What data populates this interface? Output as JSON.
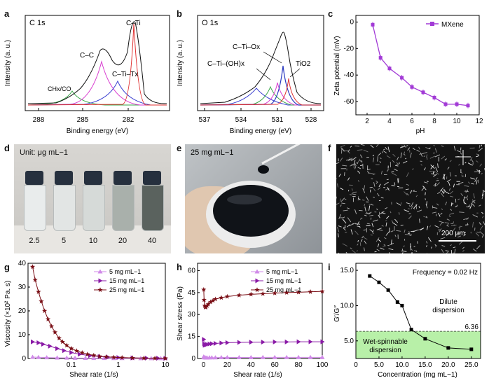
{
  "panel_labels": {
    "a": "a",
    "b": "b",
    "c": "c",
    "d": "d",
    "e": "e",
    "f": "f",
    "g": "g",
    "h": "h",
    "i": "i"
  },
  "a": {
    "title": "C 1s",
    "xlabel": "Binding energy (eV)",
    "ylabel": "Intensity (a. u.)",
    "xticks": [
      "288",
      "285",
      "282"
    ],
    "peaks": [
      "C–Ti",
      "C–C",
      "C–Ti–Tx",
      "CHx/CO"
    ]
  },
  "b": {
    "title": "O 1s",
    "xlabel": "Binding energy (eV)",
    "ylabel": "Intensity (a. u.)",
    "xticks": [
      "537",
      "534",
      "531",
      "528"
    ],
    "peaks": [
      "C–Ti–Ox",
      "C–Ti–(OH)x",
      "TiO2"
    ]
  },
  "c": {
    "legend": "MXene",
    "color": "#a23ad6",
    "chart_data": {
      "type": "line",
      "xlabel": "pH",
      "ylabel": "Zeta potential (mV)",
      "xlim": [
        1,
        12
      ],
      "ylim": [
        -70,
        5
      ],
      "xticks": [
        "2",
        "4",
        "6",
        "8",
        "10",
        "12"
      ],
      "yticks": [
        "0",
        "-20",
        "-40",
        "-60"
      ],
      "series": [
        {
          "name": "MXene",
          "x": [
            2.5,
            3.2,
            4.0,
            5.1,
            6.0,
            7.0,
            8.0,
            9.0,
            10.0,
            11.0
          ],
          "y": [
            -2,
            -27,
            -35,
            -42,
            -49,
            -53,
            -57,
            -62,
            -62,
            -63
          ]
        }
      ]
    }
  },
  "d": {
    "unit": "Unit: μg mL−1",
    "vials": [
      "2.5",
      "5",
      "10",
      "20",
      "40"
    ]
  },
  "e": {
    "caption": "25 mg mL−1"
  },
  "f": {
    "scalebar": "200 μm"
  },
  "g": {
    "chart_data": {
      "type": "line",
      "xlabel": "Shear rate (1/s)",
      "ylabel": "Viscosity (×10² Pa. s)",
      "xscale": "log",
      "ylim": [
        0,
        40
      ],
      "xticks": [
        "0.1",
        "1",
        "10"
      ],
      "yticks": [
        "0",
        "10",
        "20",
        "30",
        "40"
      ],
      "series": [
        {
          "name": "5 mg mL−1",
          "color": "#d08ae8",
          "marker": "triangle-up",
          "x": [
            0.015,
            0.02,
            0.03,
            0.05,
            0.08,
            0.12,
            0.2,
            0.3,
            0.5,
            0.8,
            1.2,
            2,
            3,
            5,
            8,
            10
          ],
          "y": [
            0.6,
            0.5,
            0.4,
            0.3,
            0.25,
            0.2,
            0.15,
            0.12,
            0.1,
            0.08,
            0.07,
            0.06,
            0.05,
            0.05,
            0.04,
            0.04
          ]
        },
        {
          "name": "15 mg mL−1",
          "color": "#8a1aa6",
          "marker": "triangle-right",
          "x": [
            0.015,
            0.02,
            0.025,
            0.035,
            0.05,
            0.07,
            0.1,
            0.15,
            0.25,
            0.4,
            0.6,
            1,
            2,
            4,
            7,
            10
          ],
          "y": [
            7,
            6.6,
            6,
            5.2,
            4.2,
            3.3,
            2.5,
            1.8,
            1.2,
            0.8,
            0.6,
            0.4,
            0.25,
            0.15,
            0.1,
            0.08
          ]
        },
        {
          "name": "25 mg mL−1",
          "color": "#7a0f16",
          "marker": "star",
          "x": [
            0.015,
            0.017,
            0.02,
            0.023,
            0.027,
            0.032,
            0.038,
            0.045,
            0.055,
            0.065,
            0.08,
            0.1,
            0.13,
            0.17,
            0.22,
            0.3,
            0.4,
            0.55,
            0.8,
            1.2,
            2,
            3.5,
            6,
            10
          ],
          "y": [
            38.5,
            33,
            28,
            24,
            20,
            16.5,
            13.5,
            11,
            8.5,
            7,
            5.5,
            4.2,
            3.2,
            2.4,
            1.8,
            1.3,
            0.9,
            0.7,
            0.5,
            0.35,
            0.25,
            0.15,
            0.1,
            0.08
          ]
        }
      ]
    }
  },
  "h": {
    "chart_data": {
      "type": "line",
      "xlabel": "Shear rate (1/s)",
      "ylabel": "Shear stress (Pa)",
      "xlim": [
        -5,
        100
      ],
      "ylim": [
        0,
        65
      ],
      "xticks": [
        "0",
        "20",
        "40",
        "60",
        "80",
        "100"
      ],
      "yticks": [
        "0",
        "15",
        "30",
        "45",
        "60"
      ],
      "series": [
        {
          "name": "5 mg mL−1",
          "color": "#d08ae8",
          "marker": "triangle-up",
          "x": [
            0.2,
            0.5,
            1,
            2,
            3,
            5,
            7,
            10,
            15,
            20,
            30,
            40,
            50,
            60,
            70,
            80,
            90,
            100
          ],
          "y": [
            1.2,
            0.8,
            0.6,
            0.5,
            0.5,
            0.6,
            0.6,
            0.6,
            0.7,
            0.7,
            0.7,
            0.7,
            0.8,
            0.8,
            0.8,
            0.8,
            0.8,
            0.8
          ]
        },
        {
          "name": "15 mg mL−1",
          "color": "#8a1aa6",
          "marker": "triangle-right",
          "x": [
            0.2,
            0.5,
            1,
            2,
            3,
            5,
            7,
            10,
            15,
            20,
            30,
            40,
            50,
            60,
            70,
            80,
            90,
            100
          ],
          "y": [
            13,
            10,
            9,
            9.3,
            9.6,
            9.9,
            10.1,
            10.3,
            10.6,
            10.8,
            11,
            11.1,
            11.2,
            11.3,
            11.3,
            11.4,
            11.4,
            11.4
          ]
        },
        {
          "name": "25 mg mL−1",
          "color": "#7a0f16",
          "marker": "star",
          "x": [
            0.2,
            0.5,
            1,
            1.5,
            2,
            3,
            4,
            6,
            8,
            10,
            15,
            20,
            30,
            40,
            50,
            60,
            70,
            80,
            90,
            100
          ],
          "y": [
            47,
            40,
            36,
            35,
            35,
            36,
            37,
            38.5,
            39.5,
            40.5,
            41.5,
            42.3,
            43.2,
            43.8,
            44.2,
            44.6,
            45,
            45.2,
            45.5,
            45.8
          ]
        }
      ]
    }
  },
  "i": {
    "annotation": "Frequency = 0.02 Hz",
    "dilute": [
      "Dilute",
      "dispersion"
    ],
    "spinnable": [
      "Wet-spinnable",
      "dispersion"
    ],
    "threshold_label": "6.36",
    "chart_data": {
      "type": "line",
      "xlabel": "Concentration (mg mL−1)",
      "ylabel": "G′/G″",
      "xlim": [
        0,
        27
      ],
      "ylim": [
        2.5,
        16
      ],
      "xticks": [
        "0",
        "5.0",
        "10.0",
        "15.0",
        "20.0",
        "25.0"
      ],
      "yticks": [
        "5.0",
        "10.0",
        "15.0"
      ],
      "threshold": 6.36,
      "series": [
        {
          "name": "G′/G″",
          "x": [
            3,
            5,
            7,
            9,
            10,
            12,
            15,
            20,
            25
          ],
          "y": [
            14.2,
            13.3,
            12.2,
            10.5,
            10,
            6.6,
            5.3,
            4,
            3.8
          ]
        }
      ]
    }
  }
}
